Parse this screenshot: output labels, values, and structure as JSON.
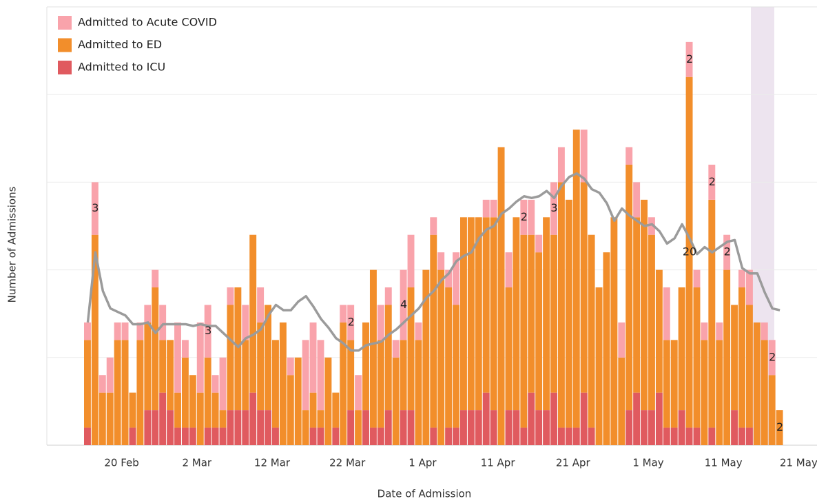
{
  "chart_data": {
    "type": "stacked_bar",
    "xlabel": "Date of Admission",
    "ylabel": "Number of Admissions",
    "categories": [
      null,
      null,
      null,
      null,
      null,
      "20 Feb",
      null,
      null,
      null,
      null,
      null,
      null,
      null,
      null,
      null,
      "2 Mar",
      null,
      null,
      null,
      null,
      null,
      null,
      null,
      null,
      null,
      "12 Mar",
      null,
      null,
      null,
      null,
      null,
      null,
      null,
      null,
      null,
      "22 Mar",
      null,
      null,
      null,
      null,
      null,
      null,
      null,
      null,
      null,
      "1 Apr",
      null,
      null,
      null,
      null,
      null,
      null,
      null,
      null,
      null,
      "11 Apr",
      null,
      null,
      null,
      null,
      null,
      null,
      null,
      null,
      null,
      "21 Apr",
      null,
      null,
      null,
      null,
      null,
      null,
      null,
      null,
      null,
      "1 May",
      null,
      null,
      null,
      null,
      null,
      null,
      null,
      null,
      null,
      "11 May",
      null,
      null,
      null,
      null,
      null,
      null,
      null,
      null,
      null,
      "21 May"
    ],
    "series": [
      {
        "name": "Admitted to Acute COVID",
        "color": "#f9a3ab",
        "values": [
          1,
          3,
          1,
          2,
          1,
          1,
          0,
          1,
          1,
          1,
          2,
          0,
          4,
          1,
          0,
          4,
          3,
          1,
          3,
          1,
          0,
          2,
          0,
          2,
          0,
          0,
          0,
          1,
          0,
          4,
          4,
          4,
          0,
          0,
          1,
          2,
          2,
          0,
          0,
          2,
          1,
          1,
          4,
          3,
          1,
          0,
          1,
          1,
          1,
          3,
          0,
          0,
          0,
          1,
          1,
          0,
          2,
          0,
          2,
          2,
          1,
          0,
          3,
          2,
          0,
          0,
          3,
          0,
          0,
          0,
          0,
          2,
          1,
          2,
          0,
          1,
          0,
          3,
          0,
          0,
          2,
          1,
          1,
          2,
          1,
          2,
          0,
          1,
          2,
          0,
          1,
          2,
          0,
          null,
          null,
          null
        ],
        "value_labels": [
          null,
          "3",
          null,
          null,
          null,
          null,
          null,
          null,
          null,
          null,
          null,
          null,
          null,
          null,
          null,
          null,
          "3",
          null,
          null,
          null,
          null,
          null,
          null,
          null,
          null,
          null,
          null,
          null,
          null,
          null,
          null,
          null,
          null,
          null,
          null,
          "2",
          null,
          null,
          null,
          null,
          null,
          null,
          "4",
          null,
          null,
          null,
          null,
          null,
          null,
          null,
          null,
          null,
          null,
          null,
          null,
          null,
          null,
          null,
          "2",
          null,
          null,
          null,
          "3",
          null,
          null,
          null,
          null,
          null,
          null,
          null,
          null,
          null,
          null,
          null,
          null,
          null,
          null,
          null,
          null,
          null,
          "2",
          null,
          null,
          "2",
          null,
          "2",
          null,
          null,
          null,
          null,
          null,
          "2",
          null,
          null,
          null,
          null
        ]
      },
      {
        "name": "Admitted to ED",
        "color": "#f28e2b",
        "values": [
          5,
          12,
          3,
          3,
          6,
          6,
          2,
          6,
          5,
          7,
          3,
          4,
          2,
          4,
          3,
          3,
          4,
          2,
          1,
          6,
          7,
          4,
          9,
          5,
          6,
          5,
          7,
          4,
          5,
          2,
          2,
          1,
          5,
          2,
          7,
          4,
          2,
          5,
          9,
          5,
          6,
          5,
          4,
          7,
          6,
          10,
          11,
          10,
          8,
          7,
          11,
          11,
          11,
          10,
          11,
          17,
          7,
          11,
          11,
          9,
          9,
          11,
          9,
          14,
          13,
          17,
          12,
          11,
          9,
          11,
          13,
          5,
          14,
          10,
          12,
          10,
          7,
          5,
          5,
          7,
          20,
          8,
          6,
          13,
          6,
          10,
          6,
          8,
          7,
          7,
          6,
          4,
          2,
          null,
          null,
          null
        ],
        "value_labels": [
          null,
          null,
          null,
          null,
          null,
          null,
          null,
          null,
          null,
          null,
          null,
          null,
          null,
          null,
          null,
          null,
          null,
          null,
          null,
          null,
          null,
          null,
          null,
          null,
          null,
          null,
          null,
          null,
          null,
          null,
          null,
          null,
          null,
          null,
          null,
          null,
          null,
          null,
          null,
          null,
          null,
          null,
          null,
          null,
          null,
          null,
          null,
          null,
          null,
          null,
          null,
          null,
          null,
          null,
          null,
          null,
          null,
          null,
          null,
          null,
          null,
          null,
          null,
          null,
          null,
          null,
          null,
          null,
          null,
          null,
          null,
          null,
          null,
          null,
          null,
          null,
          null,
          null,
          null,
          null,
          "20",
          null,
          null,
          null,
          null,
          null,
          null,
          null,
          null,
          null,
          null,
          null,
          "2",
          null,
          null,
          null
        ]
      },
      {
        "name": "Admitted to ICU",
        "color": "#e05a5f",
        "values": [
          1,
          0,
          0,
          0,
          0,
          0,
          1,
          0,
          2,
          2,
          3,
          2,
          1,
          1,
          1,
          0,
          1,
          1,
          1,
          2,
          2,
          2,
          3,
          2,
          2,
          1,
          0,
          0,
          0,
          0,
          1,
          1,
          0,
          1,
          0,
          2,
          0,
          2,
          1,
          1,
          2,
          0,
          2,
          2,
          0,
          0,
          1,
          0,
          1,
          1,
          2,
          2,
          2,
          3,
          2,
          0,
          2,
          2,
          1,
          3,
          2,
          2,
          3,
          1,
          1,
          1,
          3,
          1,
          0,
          0,
          0,
          0,
          2,
          3,
          2,
          2,
          3,
          1,
          1,
          2,
          1,
          1,
          0,
          1,
          0,
          0,
          2,
          1,
          1,
          0,
          0,
          0,
          0,
          null,
          null,
          null
        ]
      }
    ],
    "line": {
      "color": "#9b9b9b",
      "values": [
        7,
        11,
        8.8,
        7.8,
        7.6,
        7.4,
        6.9,
        6.9,
        7,
        6.4,
        6.9,
        6.9,
        6.9,
        6.9,
        6.8,
        6.9,
        6.8,
        6.8,
        6.4,
        6,
        5.6,
        6.1,
        6.3,
        6.6,
        7.4,
        8,
        7.7,
        7.7,
        8.2,
        8.5,
        7.9,
        7.2,
        6.7,
        6.1,
        5.8,
        5.4,
        5.4,
        5.7,
        5.8,
        5.9,
        6.3,
        6.6,
        7,
        7.4,
        7.8,
        8.4,
        8.8,
        9.4,
        9.8,
        10.5,
        10.8,
        11,
        11.8,
        12.3,
        12.5,
        13.2,
        13.5,
        13.9,
        14.2,
        14.1,
        14.2,
        14.5,
        14.1,
        14.8,
        15.3,
        15.5,
        15.2,
        14.6,
        14.4,
        13.8,
        12.8,
        13.5,
        13.1,
        12.8,
        12.5,
        12.6,
        12.2,
        11.5,
        11.8,
        12.6,
        11.8,
        10.9,
        11.3,
        11,
        11.3,
        11.6,
        11.7,
        10.1,
        9.8,
        9.8,
        8.7,
        7.8,
        7.7,
        null,
        null,
        null
      ]
    },
    "ylim": [
      0,
      25
    ],
    "yticks": [
      0,
      5,
      10,
      15,
      20
    ],
    "grid": true
  }
}
